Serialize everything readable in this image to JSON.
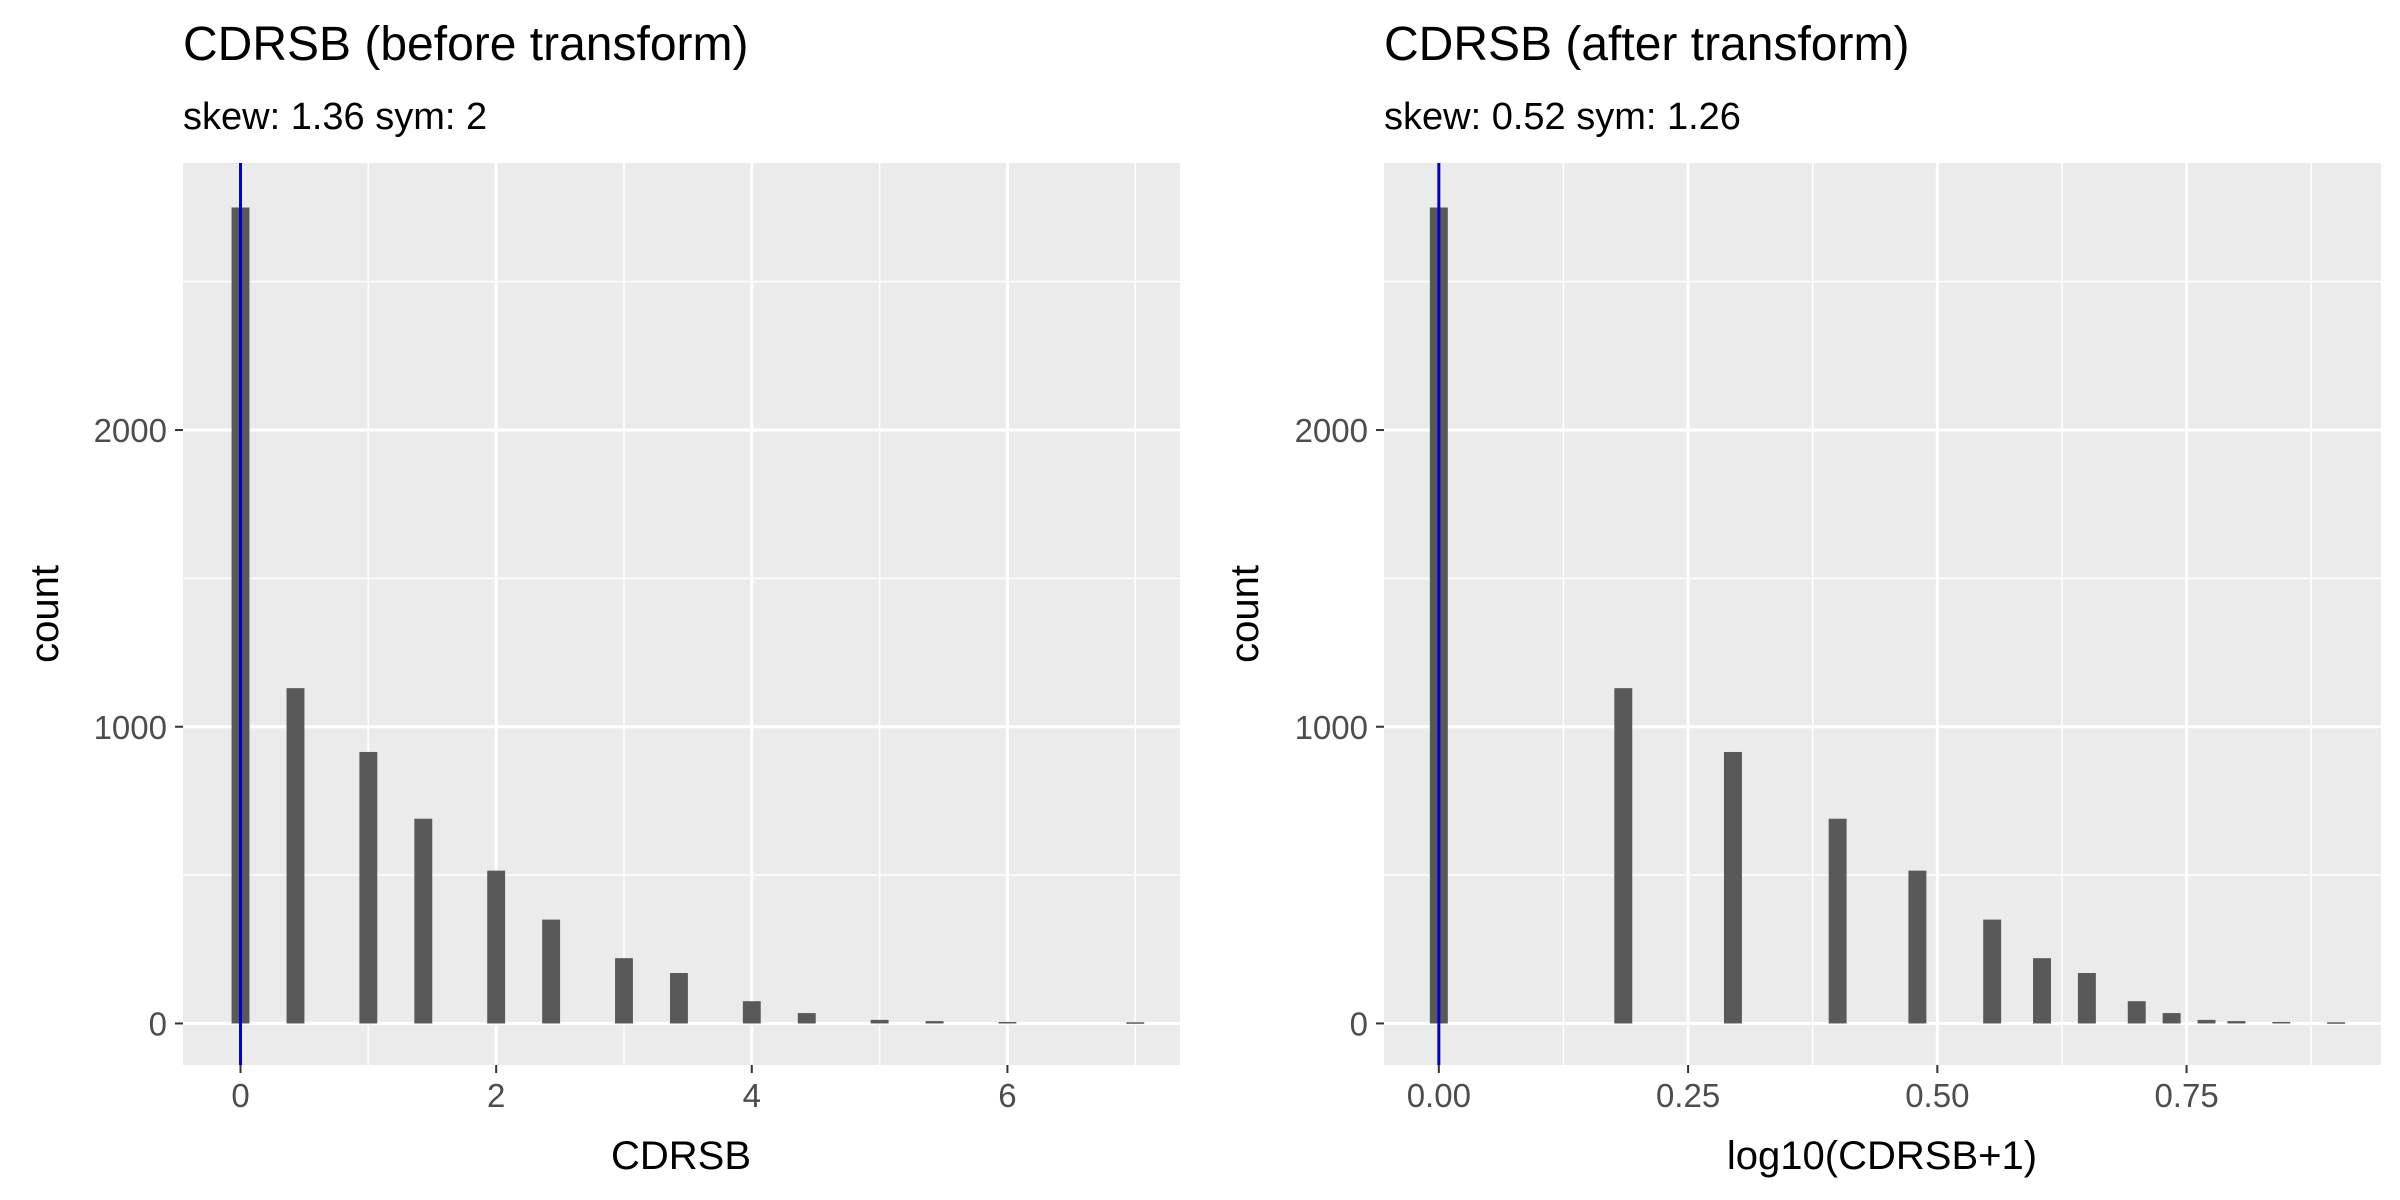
{
  "chart_data": [
    {
      "type": "bar",
      "title": "CDRSB (before transform)",
      "subtitle": "skew: 1.36 sym: 2",
      "xlabel": "CDRSB",
      "ylabel": "count",
      "xlim": [
        -0.45,
        7.35
      ],
      "ylim": [
        -140,
        2900
      ],
      "x_ticks": [
        0,
        2,
        4,
        6
      ],
      "x_tick_labels": [
        "0",
        "2",
        "4",
        "6"
      ],
      "x_minor_ticks": [
        1,
        3,
        5,
        7
      ],
      "y_ticks": [
        0,
        1000,
        2000
      ],
      "y_tick_labels": [
        "0",
        "1000",
        "2000"
      ],
      "y_minor_ticks": [
        500,
        1500,
        2500
      ],
      "bar_width": 0.14,
      "bins": [
        0,
        0.43,
        1,
        1.43,
        2,
        2.43,
        3,
        3.43,
        4,
        4.43,
        5,
        5.43,
        6,
        7
      ],
      "counts": [
        2750,
        1130,
        915,
        690,
        515,
        350,
        220,
        170,
        75,
        35,
        12,
        8,
        5,
        4
      ],
      "vline": 0,
      "colors": {
        "bar": "#595959",
        "vline": "#0000cc",
        "panel": "#ebebeb",
        "grid": "#ffffff"
      },
      "grid": true,
      "legend": "none"
    },
    {
      "type": "bar",
      "title": "CDRSB (after transform)",
      "subtitle": "skew: 0.52 sym: 1.26",
      "xlabel": "log10(CDRSB+1)",
      "ylabel": "count",
      "xlim": [
        -0.055,
        0.945
      ],
      "ylim": [
        -140,
        2900
      ],
      "x_ticks": [
        0,
        0.25,
        0.5,
        0.75
      ],
      "x_tick_labels": [
        "0.00",
        "0.25",
        "0.50",
        "0.75"
      ],
      "x_minor_ticks": [
        0.125,
        0.375,
        0.625,
        0.875
      ],
      "y_ticks": [
        0,
        1000,
        2000
      ],
      "y_tick_labels": [
        "0",
        "1000",
        "2000"
      ],
      "y_minor_ticks": [
        500,
        1500,
        2500
      ],
      "bar_width": 0.018,
      "bins": [
        0,
        0.185,
        0.295,
        0.4,
        0.48,
        0.555,
        0.605,
        0.65,
        0.7,
        0.735,
        0.77,
        0.8,
        0.845,
        0.9
      ],
      "counts": [
        2750,
        1130,
        915,
        690,
        515,
        350,
        220,
        170,
        75,
        35,
        12,
        8,
        5,
        4
      ],
      "vline": 0,
      "colors": {
        "bar": "#595959",
        "vline": "#0000cc",
        "panel": "#ebebeb",
        "grid": "#ffffff"
      },
      "grid": true,
      "legend": "none"
    }
  ]
}
